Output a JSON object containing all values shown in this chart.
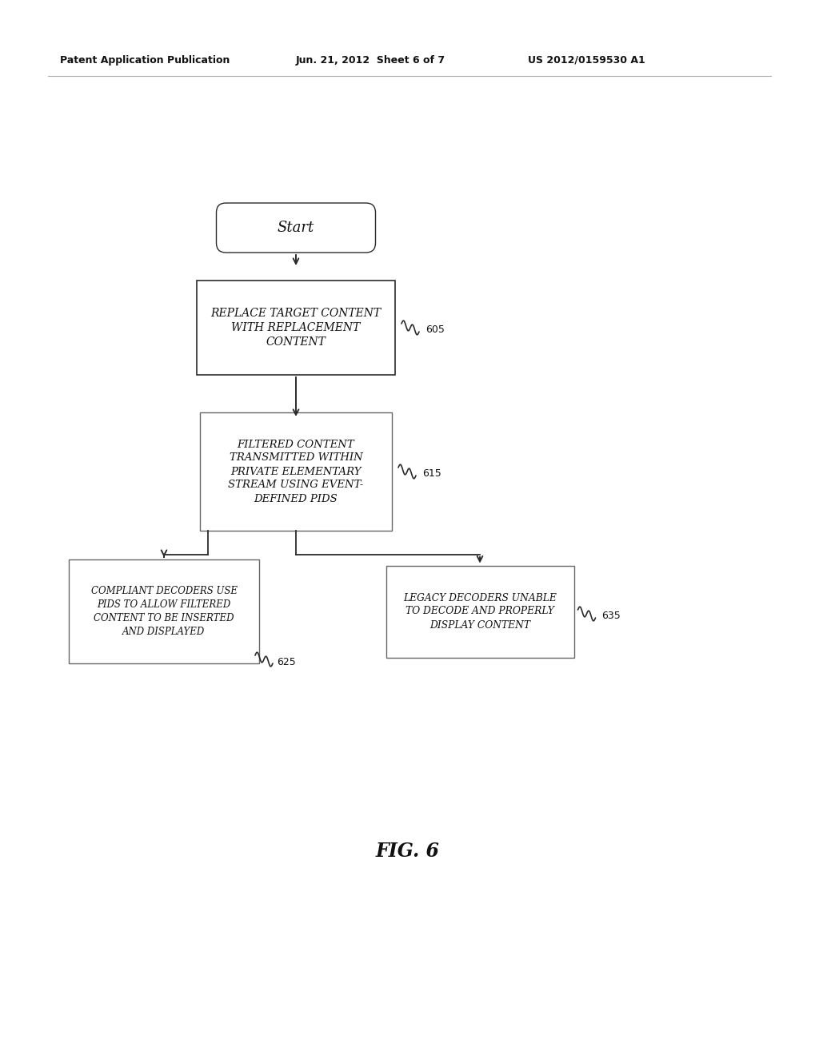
{
  "bg_color": "#ffffff",
  "header_left": "Patent Application Publication",
  "header_mid": "Jun. 21, 2012  Sheet 6 of 7",
  "header_right": "US 2012/0159530 A1",
  "fig_label": "FIG. 6",
  "start_label": "Start",
  "box1_text": "REPLACE TARGET CONTENT\nWITH REPLACEMENT\nCONTENT",
  "box1_ref": "605",
  "box2_text": "FILTERED CONTENT\nTRANSMITTED WITHIN\nPRIVATE ELEMENTARY\nSTREAM USING EVENT-\nDEFINED PIDS",
  "box2_ref": "615",
  "box3_text": "COMPLIANT DECODERS USE\nPIDS TO ALLOW FILTERED\nCONTENT TO BE INSERTED\nAND DISPLAYED",
  "box3_ref": "625",
  "box4_text": "LEGACY DECODERS UNABLE\nTO DECODE AND PROPERLY\nDISPLAY CONTENT",
  "box4_ref": "635",
  "edge_color": "#2a2a2a",
  "text_color": "#111111"
}
